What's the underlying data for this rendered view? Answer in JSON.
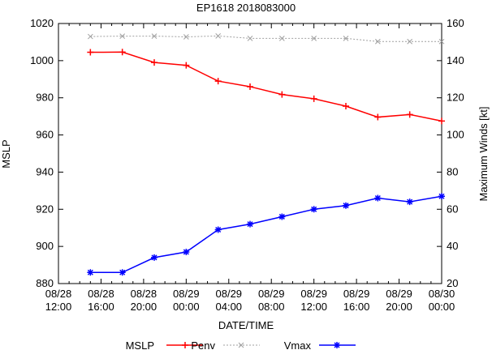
{
  "chart_data": {
    "type": "line",
    "title": "EP1618 2018083000",
    "xlabel": "DATE/TIME",
    "ylabel": "MSLP",
    "y2label": "Maximum Winds [kt]",
    "ylim": [
      880,
      1020
    ],
    "y2lim": [
      20,
      160
    ],
    "yticks": [
      "880",
      "900",
      "920",
      "940",
      "960",
      "980",
      "1000",
      "1020"
    ],
    "y2ticks": [
      "20",
      "40",
      "60",
      "80",
      "100",
      "120",
      "140",
      "160"
    ],
    "xticks": [
      [
        "08/28",
        "12:00"
      ],
      [
        "08/28",
        "16:00"
      ],
      [
        "08/28",
        "20:00"
      ],
      [
        "08/29",
        "00:00"
      ],
      [
        "08/29",
        "04:00"
      ],
      [
        "08/29",
        "08:00"
      ],
      [
        "08/29",
        "12:00"
      ],
      [
        "08/29",
        "16:00"
      ],
      [
        "08/29",
        "20:00"
      ],
      [
        "08/30",
        "00:00"
      ]
    ],
    "x_hours": [
      3,
      6,
      9,
      12,
      15,
      18,
      21,
      24,
      27,
      30,
      33,
      36
    ],
    "series": [
      {
        "name": "MSLP",
        "axis": "left",
        "color": "#ff0000",
        "marker": "plus",
        "values": [
          1004.5,
          1004.6,
          999,
          997.5,
          989,
          986,
          981.8,
          979.5,
          975.5,
          969.6,
          971,
          967.5
        ]
      },
      {
        "name": "Penv",
        "axis": "left",
        "color": "#a0a0a0",
        "marker": "x",
        "values": [
          1013,
          1013.2,
          1013.2,
          1012.8,
          1013.3,
          1012,
          1012,
          1012,
          1012,
          1010.3,
          1010.3,
          1010.3
        ]
      },
      {
        "name": "Vmax",
        "axis": "right",
        "color": "#0000ff",
        "marker": "star",
        "values": [
          26,
          26,
          34,
          37,
          49,
          52,
          56,
          60,
          62,
          66,
          64,
          67
        ]
      }
    ],
    "legend": "bottom"
  }
}
